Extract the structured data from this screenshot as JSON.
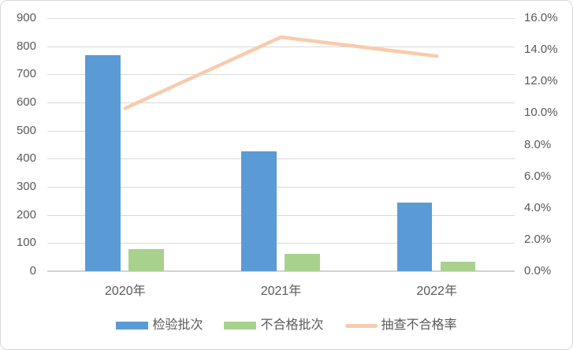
{
  "chart_data": {
    "type": "combo-bar-line",
    "categories": [
      "2020年",
      "2021年",
      "2022年"
    ],
    "series": [
      {
        "name": "检验批次",
        "slug": "inspection-batches",
        "kind": "bar",
        "axis": "left",
        "color": "#5B9BD5",
        "values": [
          769,
          425,
          243
        ]
      },
      {
        "name": "不合格批次",
        "slug": "unqualified-batches",
        "kind": "bar",
        "axis": "left",
        "color": "#A9D18E",
        "values": [
          79,
          63,
          33
        ]
      },
      {
        "name": "抽查不合格率",
        "slug": "failure-rate",
        "kind": "line",
        "axis": "right",
        "color": "#F8CBAD",
        "values": [
          10.3,
          14.8,
          13.6
        ]
      }
    ],
    "title": "",
    "xlabel": "",
    "ylabel": "",
    "grid": true,
    "legend_position": "bottom",
    "left_axis": {
      "min": 0,
      "max": 900,
      "step": 100,
      "ticks": [
        "900",
        "800",
        "700",
        "600",
        "500",
        "400",
        "300",
        "200",
        "100",
        "0"
      ]
    },
    "right_axis": {
      "min": 0,
      "max": 16,
      "step": 2,
      "ticks": [
        "16.0%",
        "14.0%",
        "12.0%",
        "10.0%",
        "8.0%",
        "6.0%",
        "4.0%",
        "2.0%",
        "0.0%"
      ]
    }
  },
  "colors": {
    "bar_blue": "#5B9BD5",
    "bar_green": "#A9D18E",
    "line_peach": "#F8CBAD",
    "gridline": "#D9D9D9",
    "axis_text": "#595959",
    "frame_border": "#D9D9D9",
    "background": "#FFFFFF"
  }
}
